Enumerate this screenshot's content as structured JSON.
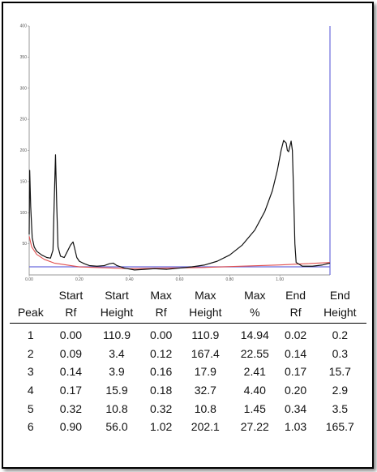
{
  "chart_data": [
    {
      "type": "line",
      "title": "",
      "xlabel": "",
      "ylabel": "",
      "xlim": [
        0,
        1.2
      ],
      "ylim": [
        0,
        400
      ],
      "x_ticks": [
        "0.00",
        "0.20",
        "0.40",
        "0.60",
        "0.80",
        "1.00"
      ],
      "y_ticks": [
        "50",
        "100",
        "150",
        "200",
        "250",
        "300",
        "350",
        "400"
      ],
      "grid": false,
      "series": [
        {
          "color": "#111111",
          "points": [
            [
              0.0,
              65
            ],
            [
              0.002,
              168
            ],
            [
              0.006,
              110
            ],
            [
              0.012,
              60
            ],
            [
              0.02,
              45
            ],
            [
              0.03,
              38
            ],
            [
              0.05,
              32
            ],
            [
              0.07,
              28
            ],
            [
              0.085,
              27
            ],
            [
              0.095,
              40
            ],
            [
              0.1,
              120
            ],
            [
              0.105,
              193
            ],
            [
              0.11,
              110
            ],
            [
              0.115,
              45
            ],
            [
              0.125,
              30
            ],
            [
              0.14,
              28
            ],
            [
              0.155,
              40
            ],
            [
              0.165,
              48
            ],
            [
              0.175,
              53
            ],
            [
              0.18,
              45
            ],
            [
              0.19,
              28
            ],
            [
              0.2,
              22
            ],
            [
              0.22,
              18
            ],
            [
              0.24,
              15
            ],
            [
              0.27,
              14
            ],
            [
              0.3,
              15
            ],
            [
              0.32,
              18
            ],
            [
              0.335,
              19
            ],
            [
              0.35,
              15
            ],
            [
              0.38,
              11
            ],
            [
              0.42,
              8
            ],
            [
              0.46,
              9
            ],
            [
              0.5,
              10
            ],
            [
              0.55,
              9
            ],
            [
              0.6,
              11
            ],
            [
              0.65,
              13
            ],
            [
              0.7,
              16
            ],
            [
              0.75,
              22
            ],
            [
              0.8,
              32
            ],
            [
              0.85,
              48
            ],
            [
              0.9,
              72
            ],
            [
              0.94,
              102
            ],
            [
              0.97,
              135
            ],
            [
              0.99,
              168
            ],
            [
              1.005,
              200
            ],
            [
              1.015,
              216
            ],
            [
              1.025,
              212
            ],
            [
              1.03,
              200
            ],
            [
              1.035,
              198
            ],
            [
              1.045,
              215
            ],
            [
              1.05,
              200
            ],
            [
              1.055,
              130
            ],
            [
              1.06,
              50
            ],
            [
              1.065,
              20
            ],
            [
              1.09,
              14
            ],
            [
              1.13,
              14
            ],
            [
              1.17,
              16
            ],
            [
              1.2,
              19
            ]
          ]
        },
        {
          "color": "#e05050",
          "points": [
            [
              0.0,
              62
            ],
            [
              0.01,
              45
            ],
            [
              0.03,
              33
            ],
            [
              0.06,
              25
            ],
            [
              0.1,
              19
            ],
            [
              0.2,
              13
            ],
            [
              0.4,
              10
            ],
            [
              0.7,
              12
            ],
            [
              1.0,
              16
            ],
            [
              1.2,
              20
            ]
          ]
        }
      ]
    },
    {
      "type": "table",
      "columns": [
        [
          "Peak"
        ],
        [
          "Start",
          "Rf"
        ],
        [
          "Start",
          "Height"
        ],
        [
          "Max",
          "Rf"
        ],
        [
          "Max",
          "Height"
        ],
        [
          "Max",
          "%"
        ],
        [
          "End",
          "Rf"
        ],
        [
          "End",
          "Height"
        ]
      ],
      "rows": [
        [
          "1",
          "0.00",
          "110.9",
          "0.00",
          "110.9",
          "14.94",
          "0.02",
          "0.2"
        ],
        [
          "2",
          "0.09",
          "3.4",
          "0.12",
          "167.4",
          "22.55",
          "0.14",
          "0.3"
        ],
        [
          "3",
          "0.14",
          "3.9",
          "0.16",
          "17.9",
          "2.41",
          "0.17",
          "15.7"
        ],
        [
          "4",
          "0.17",
          "15.9",
          "0.18",
          "32.7",
          "4.40",
          "0.20",
          "2.9"
        ],
        [
          "5",
          "0.32",
          "10.8",
          "0.32",
          "10.8",
          "1.45",
          "0.34",
          "3.5"
        ],
        [
          "6",
          "0.90",
          "56.0",
          "1.02",
          "202.1",
          "27.22",
          "1.03",
          "165.7"
        ]
      ]
    }
  ]
}
